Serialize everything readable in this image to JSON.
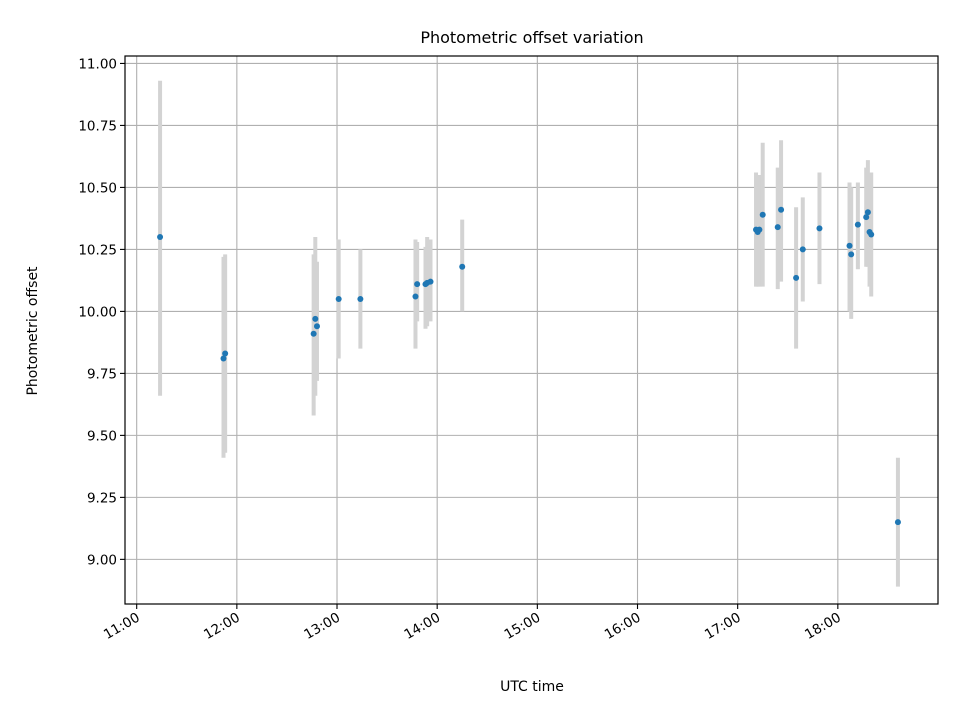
{
  "chart_data": {
    "type": "scatter",
    "title": "Photometric offset variation",
    "xlabel": "UTC time",
    "ylabel": "Photometric offset",
    "xlim": [
      "10:53",
      "19:00"
    ],
    "ylim": [
      8.82,
      11.03
    ],
    "x_ticks": [
      "11:00",
      "12:00",
      "13:00",
      "14:00",
      "15:00",
      "16:00",
      "17:00",
      "18:00"
    ],
    "y_ticks": [
      "9.00",
      "9.25",
      "9.50",
      "9.75",
      "10.00",
      "10.25",
      "10.50",
      "10.75",
      "11.00"
    ],
    "grid": true,
    "legend": "none",
    "colors": {
      "points": "#1f77b4",
      "error_bars": "#d3d3d3",
      "grid": "#b0b0b0"
    },
    "series": [
      {
        "x": [
          "11:14",
          "11:52",
          "11:53",
          "12:46",
          "12:47",
          "12:48",
          "13:01",
          "13:14",
          "13:47",
          "13:48",
          "13:53",
          "13:54",
          "13:56",
          "14:15",
          "17:11",
          "17:12",
          "17:13",
          "17:15",
          "17:24",
          "17:26",
          "17:35",
          "17:39",
          "17:49",
          "18:07",
          "18:08",
          "18:12",
          "18:17",
          "18:18",
          "18:19",
          "18:20",
          "18:36"
        ],
        "y": [
          10.3,
          9.81,
          9.83,
          9.91,
          9.97,
          9.94,
          10.05,
          10.05,
          10.06,
          10.11,
          10.11,
          10.115,
          10.12,
          10.18,
          10.33,
          10.32,
          10.33,
          10.39,
          10.34,
          10.41,
          10.135,
          10.25,
          10.335,
          10.265,
          10.23,
          10.35,
          10.38,
          10.4,
          10.32,
          10.31,
          9.15
        ],
        "yerr_low": [
          9.66,
          9.41,
          9.43,
          9.58,
          9.66,
          9.72,
          9.81,
          9.85,
          9.85,
          9.96,
          9.93,
          9.94,
          9.96,
          10.0,
          10.1,
          10.1,
          10.1,
          10.1,
          10.09,
          10.12,
          9.85,
          10.04,
          10.11,
          10.0,
          9.97,
          10.17,
          10.18,
          10.18,
          10.1,
          10.06,
          8.89
        ],
        "yerr_high": [
          10.93,
          10.22,
          10.23,
          10.23,
          10.3,
          10.2,
          10.29,
          10.25,
          10.29,
          10.28,
          10.26,
          10.3,
          10.29,
          10.37,
          10.56,
          10.53,
          10.55,
          10.68,
          10.58,
          10.69,
          10.42,
          10.46,
          10.56,
          10.52,
          10.5,
          10.52,
          10.58,
          10.61,
          10.56,
          10.56,
          9.41
        ]
      }
    ]
  }
}
